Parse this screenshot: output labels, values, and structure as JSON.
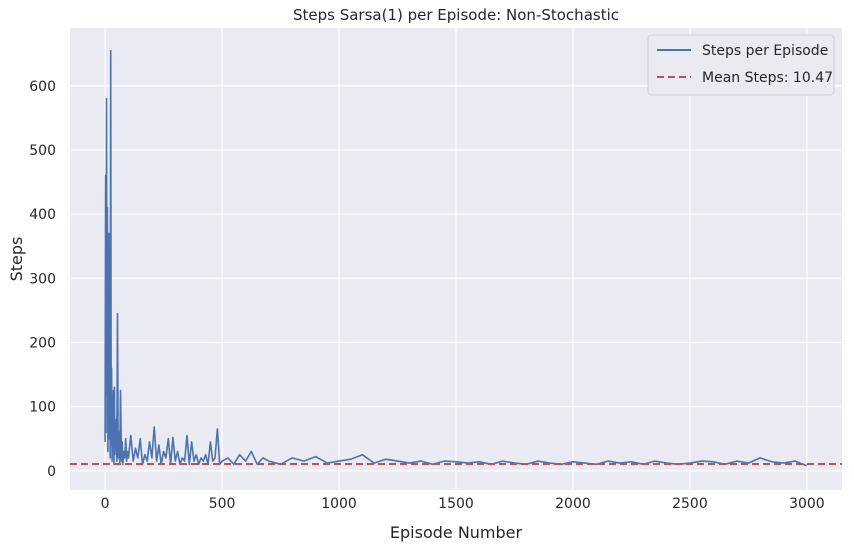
{
  "chart_data": {
    "type": "line",
    "title": "Steps Sarsa(1) per Episode: Non-Stochastic",
    "xlabel": "Episode Number",
    "ylabel": "Steps",
    "xlim": [
      -150,
      3150
    ],
    "ylim": [
      -30,
      690
    ],
    "x_ticks": [
      0,
      500,
      1000,
      1500,
      2000,
      2500,
      3000
    ],
    "y_ticks": [
      0,
      100,
      200,
      300,
      400,
      500,
      600
    ],
    "grid": true,
    "background": "#eaeaf2",
    "legend": {
      "position": "top-right",
      "entries": [
        "Steps per Episode",
        "Mean Steps: 10.47"
      ]
    },
    "series": [
      {
        "name": "Steps per Episode",
        "color": "#4c72b0",
        "style": "solid",
        "x": [
          0,
          2,
          4,
          6,
          8,
          10,
          12,
          14,
          16,
          18,
          20,
          22,
          24,
          26,
          28,
          30,
          32,
          34,
          36,
          38,
          40,
          42,
          44,
          46,
          48,
          50,
          53,
          56,
          60,
          63,
          66,
          70,
          73,
          76,
          80,
          84,
          88,
          92,
          96,
          100,
          110,
          120,
          130,
          140,
          150,
          160,
          170,
          180,
          190,
          200,
          210,
          220,
          230,
          240,
          250,
          260,
          270,
          280,
          290,
          300,
          310,
          320,
          330,
          340,
          350,
          360,
          370,
          380,
          390,
          400,
          410,
          420,
          430,
          440,
          450,
          460,
          470,
          480,
          490,
          500,
          525,
          550,
          575,
          600,
          625,
          650,
          675,
          700,
          750,
          800,
          850,
          900,
          950,
          1000,
          1050,
          1100,
          1150,
          1200,
          1250,
          1300,
          1350,
          1400,
          1450,
          1500,
          1550,
          1600,
          1650,
          1700,
          1750,
          1800,
          1850,
          1900,
          1950,
          2000,
          2050,
          2100,
          2150,
          2200,
          2250,
          2300,
          2350,
          2400,
          2450,
          2500,
          2550,
          2600,
          2650,
          2700,
          2750,
          2800,
          2850,
          2900,
          2950,
          2999
        ],
        "values": [
          45,
          460,
          60,
          580,
          120,
          410,
          30,
          200,
          370,
          50,
          230,
          20,
          655,
          40,
          160,
          15,
          60,
          100,
          125,
          10,
          130,
          25,
          60,
          40,
          80,
          15,
          245,
          20,
          60,
          10,
          125,
          15,
          45,
          10,
          30,
          20,
          50,
          15,
          30,
          20,
          55,
          15,
          35,
          20,
          50,
          10,
          25,
          15,
          45,
          20,
          68,
          15,
          40,
          10,
          30,
          20,
          50,
          10,
          52,
          15,
          30,
          10,
          20,
          15,
          55,
          10,
          45,
          15,
          25,
          10,
          20,
          15,
          25,
          10,
          45,
          15,
          20,
          65,
          10,
          15,
          20,
          10,
          25,
          15,
          30,
          10,
          20,
          15,
          10,
          20,
          15,
          22,
          12,
          15,
          18,
          25,
          12,
          18,
          15,
          12,
          15,
          10,
          15,
          14,
          12,
          14,
          10,
          15,
          12,
          10,
          15,
          12,
          10,
          14,
          12,
          10,
          15,
          12,
          14,
          10,
          15,
          12,
          10,
          12,
          15,
          14,
          10,
          15,
          12,
          20,
          14,
          12,
          15,
          8
        ]
      },
      {
        "name": "Mean Steps: 10.47",
        "color": "#c44e52",
        "style": "dashed",
        "value": 10.47
      }
    ]
  }
}
